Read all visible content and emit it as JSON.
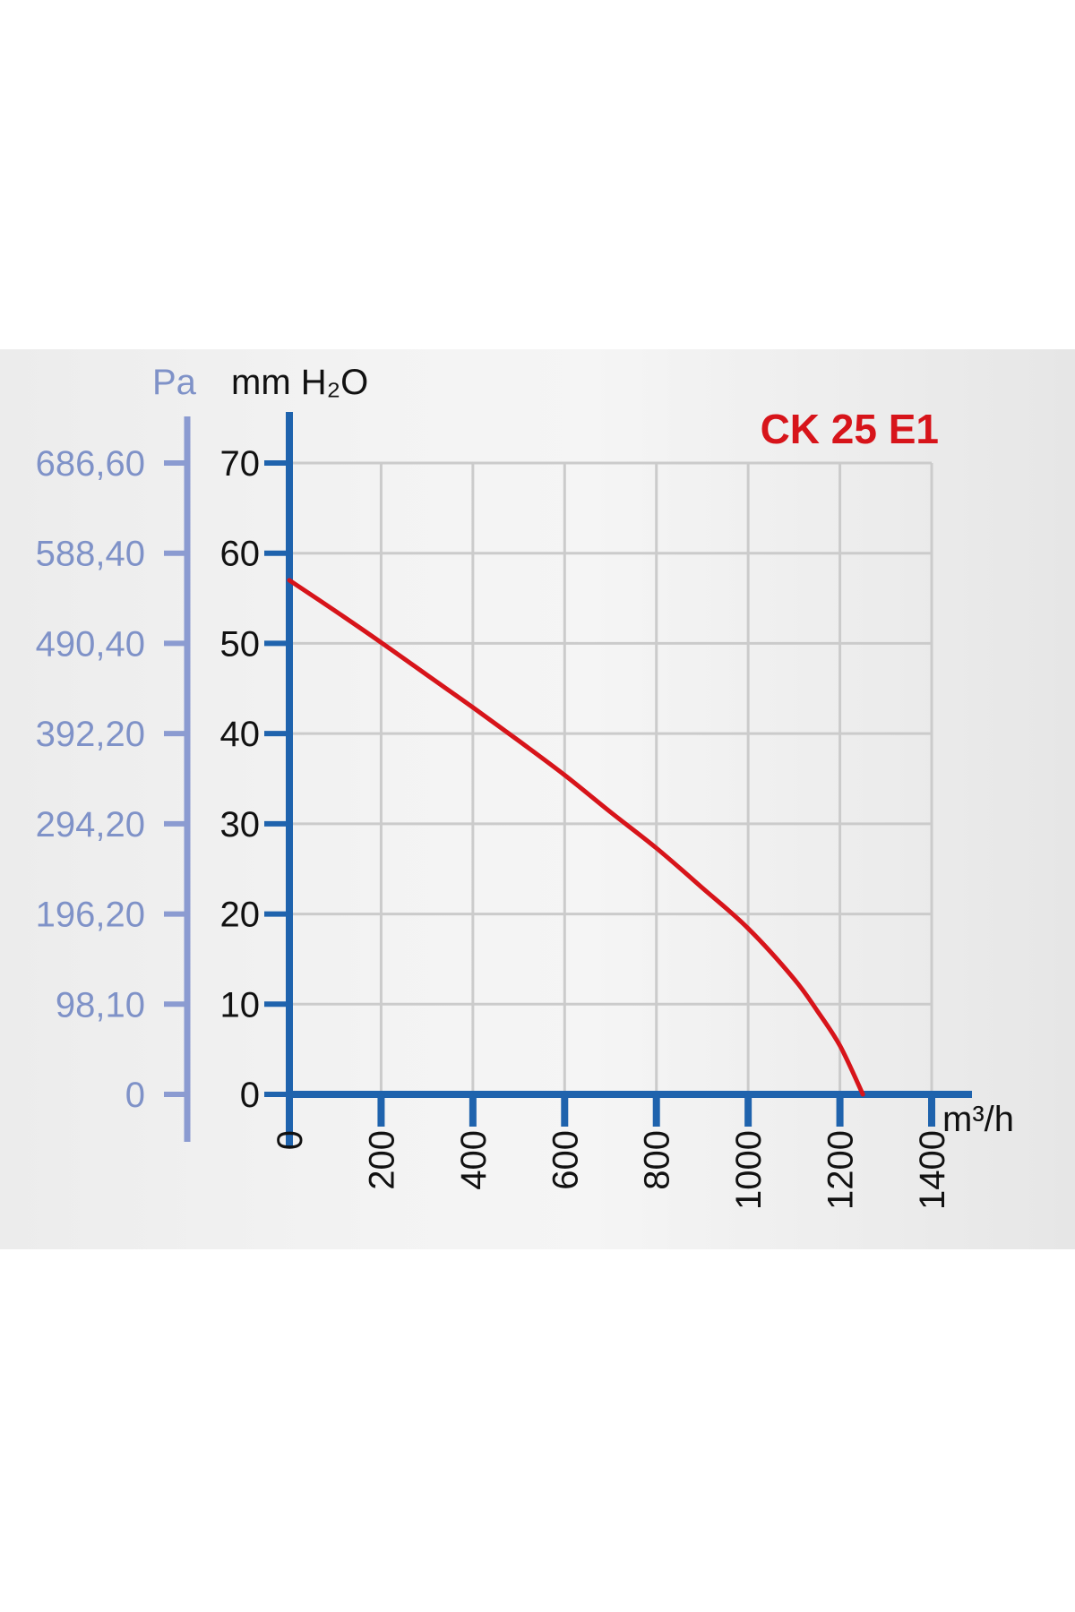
{
  "chart_data": {
    "type": "line",
    "title": "CK 25 E1",
    "xlabel": "m³/h",
    "ylabel": "mm H₂O",
    "y2label": "Pa",
    "xlim": [
      0,
      1400
    ],
    "ylim": [
      0,
      70
    ],
    "x_ticks": [
      "0",
      "200",
      "400",
      "600",
      "800",
      "1000",
      "1200",
      "1400"
    ],
    "y_ticks": [
      "0",
      "10",
      "20",
      "30",
      "40",
      "50",
      "60",
      "70"
    ],
    "y2_ticks": [
      "0",
      "98,10",
      "196,20",
      "294,20",
      "392,20",
      "490,40",
      "588,40",
      "686,60"
    ],
    "grid": true,
    "series": [
      {
        "name": "CK 25 E1",
        "color": "#d7141a",
        "x": [
          0,
          100,
          200,
          300,
          400,
          500,
          600,
          700,
          800,
          900,
          1000,
          1100,
          1150,
          1200,
          1250
        ],
        "y": [
          57,
          53.6,
          50.1,
          46.5,
          42.9,
          39.2,
          35.4,
          31.3,
          27.3,
          22.9,
          18.4,
          12.8,
          9.3,
          5.4,
          0
        ]
      }
    ],
    "colors": {
      "axis": "#1f63ad",
      "pa_axis": "#8b9bd1",
      "grid": "#cbcbcb"
    }
  }
}
